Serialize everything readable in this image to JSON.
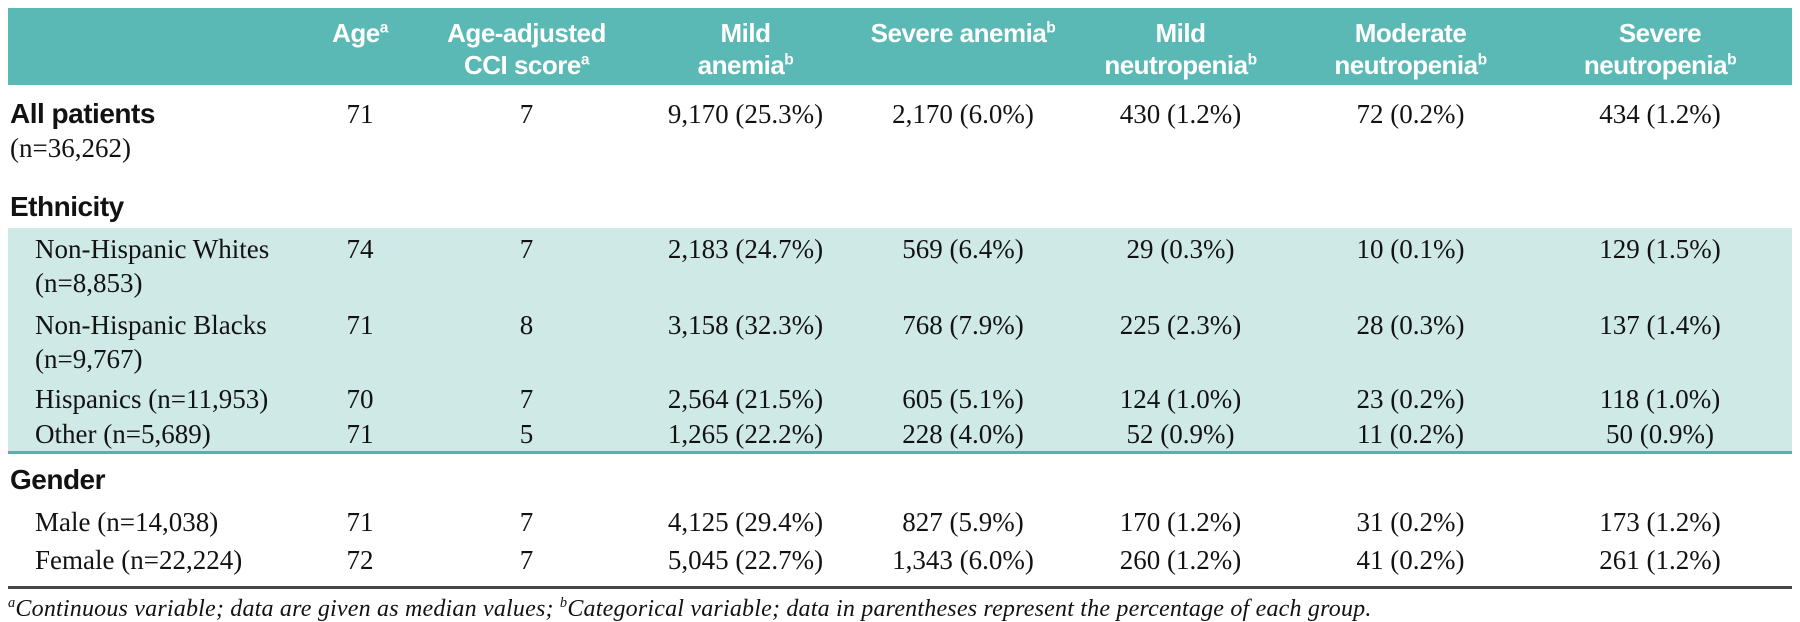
{
  "colors": {
    "header_bg": "#5ab9b4",
    "band_bg": "#cfe9e6",
    "band_rule": "#4fb3ae",
    "footnote_rule": "#474747",
    "header_text": "#ffffff",
    "body_text": "#121212"
  },
  "table": {
    "columns": [
      {
        "line1": "Age",
        "sup1": "a",
        "line2": "",
        "sup2": ""
      },
      {
        "line1": "Age-adjusted",
        "sup1": "",
        "line2": "CCI score",
        "sup2": "a"
      },
      {
        "line1": "Mild",
        "sup1": "",
        "line2": "anemia",
        "sup2": "b"
      },
      {
        "line1": "Severe anemia",
        "sup1": "b",
        "line2": "",
        "sup2": ""
      },
      {
        "line1": "Mild",
        "sup1": "",
        "line2": "neutropenia",
        "sup2": "b"
      },
      {
        "line1": "Moderate",
        "sup1": "",
        "line2": "neutropenia",
        "sup2": "b"
      },
      {
        "line1": "Severe",
        "sup1": "",
        "line2": "neutropenia",
        "sup2": "b"
      }
    ],
    "rows": [
      {
        "label1": "All patients",
        "label2": "(n=36,262)",
        "values": [
          "71",
          "7",
          "9,170 (25.3%)",
          "2,170 (6.0%)",
          "430 (1.2%)",
          "72 (0.2%)",
          "434 (1.2%)"
        ]
      },
      {
        "section": "Ethnicity"
      },
      {
        "label1": "Non-Hispanic Whites",
        "label2": "(n=8,853)",
        "values": [
          "74",
          "7",
          "2,183 (24.7%)",
          "569 (6.4%)",
          "29 (0.3%)",
          "10 (0.1%)",
          "129 (1.5%)"
        ]
      },
      {
        "label1": "Non-Hispanic Blacks",
        "label2": "(n=9,767)",
        "values": [
          "71",
          "8",
          "3,158 (32.3%)",
          "768 (7.9%)",
          "225 (2.3%)",
          "28 (0.3%)",
          "137 (1.4%)"
        ]
      },
      {
        "label1": "Hispanics (n=11,953)",
        "label2": "",
        "values": [
          "70",
          "7",
          "2,564 (21.5%)",
          "605 (5.1%)",
          "124 (1.0%)",
          "23 (0.2%)",
          "118 (1.0%)"
        ]
      },
      {
        "label1": "Other (n=5,689)",
        "label2": "",
        "values": [
          "71",
          "5",
          "1,265 (22.2%)",
          "228 (4.0%)",
          "52 (0.9%)",
          "11 (0.2%)",
          "50 (0.9%)"
        ]
      },
      {
        "section": "Gender"
      },
      {
        "label1": "Male (n=14,038)",
        "label2": "",
        "values": [
          "71",
          "7",
          "4,125 (29.4%)",
          "827 (5.9%)",
          "170 (1.2%)",
          "31 (0.2%)",
          "173 (1.2%)"
        ]
      },
      {
        "label1": "Female (n=22,224)",
        "label2": "",
        "values": [
          "72",
          "7",
          "5,045 (22.7%)",
          "1,343 (6.0%)",
          "260 (1.2%)",
          "41 (0.2%)",
          "261 (1.2%)"
        ]
      }
    ]
  },
  "footnote": {
    "parts": [
      {
        "sup": "a",
        "text": "Continuous variable; data are given as median values; "
      },
      {
        "sup": "b",
        "text": "Categorical variable; data in parentheses represent the percentage of each group."
      }
    ]
  }
}
